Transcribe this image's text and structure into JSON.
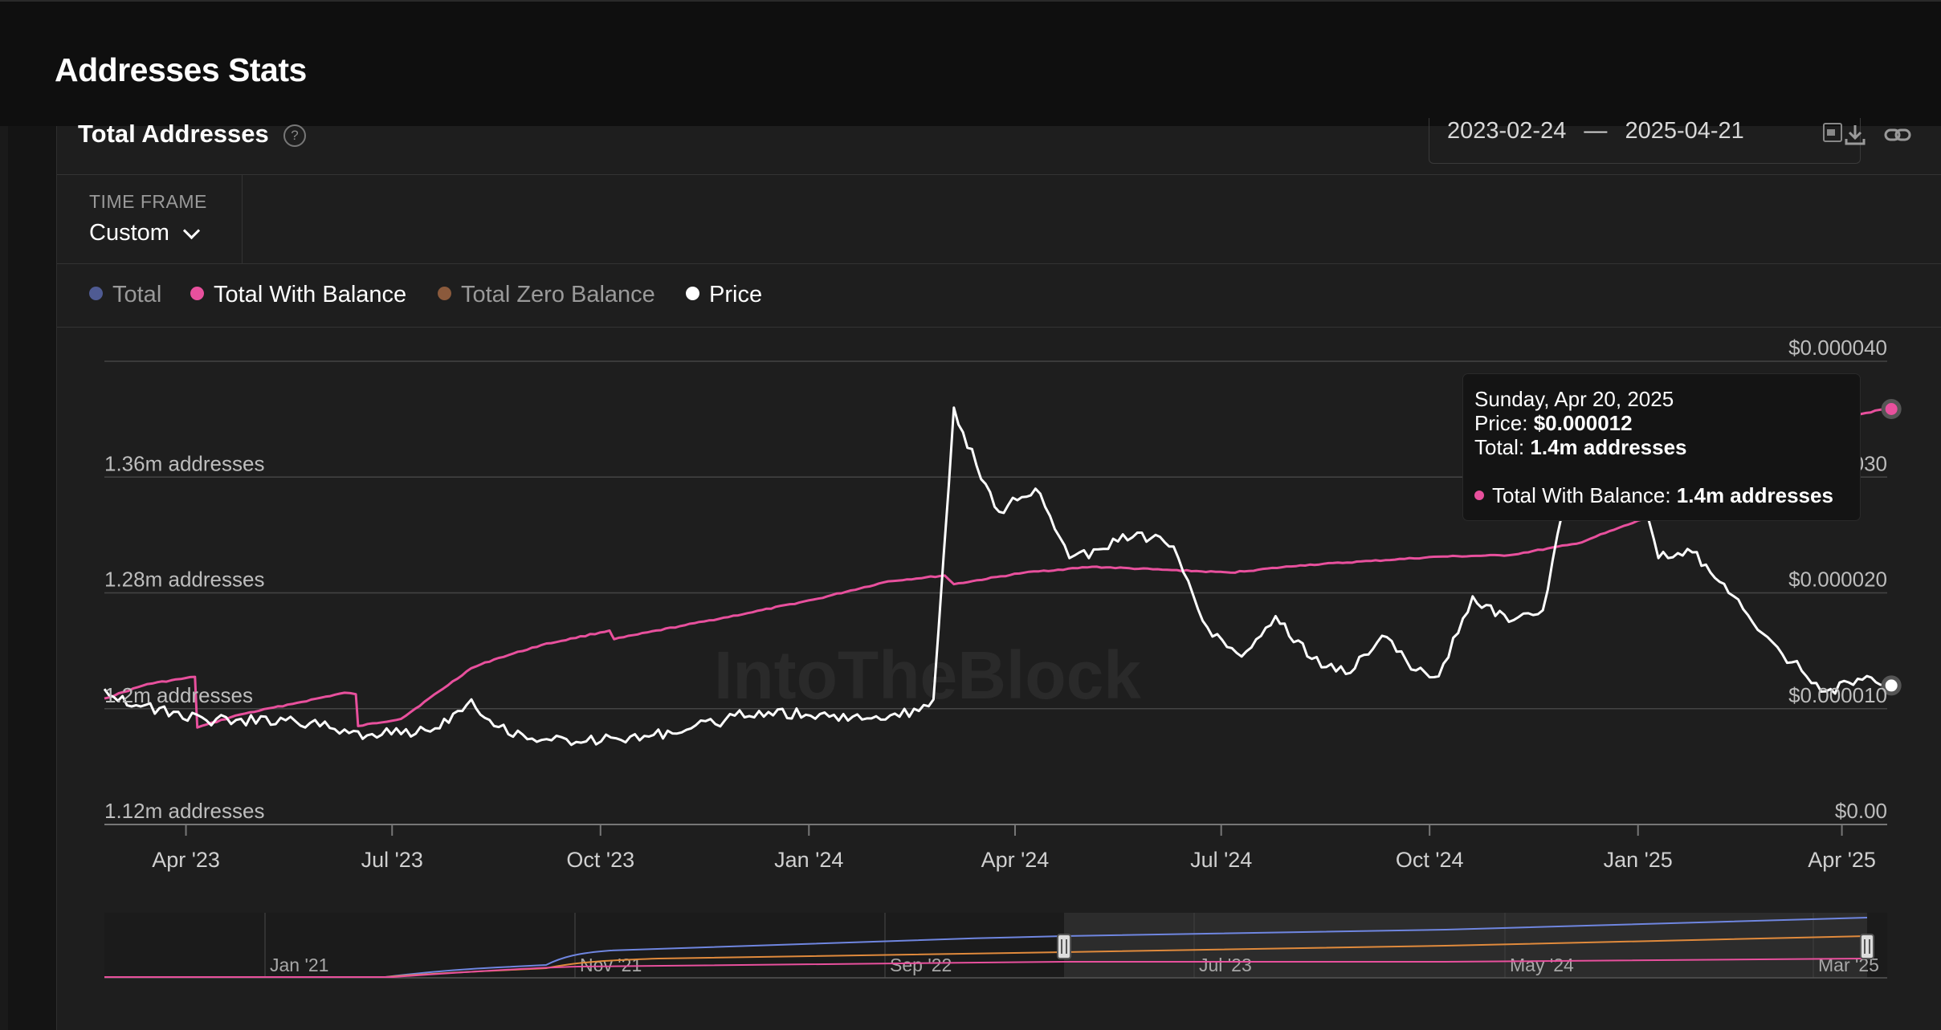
{
  "page": {
    "title": "Addresses Stats"
  },
  "card": {
    "title": "Total Addresses",
    "help_icon": "question-circle-icon",
    "date_start": "2023-02-24",
    "date_sep": "—",
    "date_end": "2025-04-21",
    "calendar_icon": "calendar-icon",
    "download_icon": "download-icon",
    "link_icon": "link-icon"
  },
  "time_frame": {
    "label": "TIME FRAME",
    "value": "Custom",
    "icon": "chevron-down-icon"
  },
  "legend": [
    {
      "label": "Total",
      "color": "#4f5b93",
      "active": false
    },
    {
      "label": "Total With Balance",
      "color": "#e8509d",
      "active": true
    },
    {
      "label": "Total Zero Balance",
      "color": "#8b5a3c",
      "active": false
    },
    {
      "label": "Price",
      "color": "#ffffff",
      "active": true
    }
  ],
  "watermark": "IntoTheBlock",
  "tooltip": {
    "date": "Sunday, Apr 20, 2025",
    "price_label": "Price:",
    "price_value": "$0.000012",
    "total_label": "Total:",
    "total_value": "1.4m addresses",
    "twb_label": "Total With Balance:",
    "twb_value": "1.4m addresses"
  },
  "chart_data": {
    "type": "line",
    "x_ticks": [
      "Apr '23",
      "Jul '23",
      "Oct '23",
      "Jan '24",
      "Apr '24",
      "Jul '24",
      "Oct '24",
      "Jan '25",
      "Apr '25"
    ],
    "y_left_ticks": [
      "1.12m addresses",
      "1.2m addresses",
      "1.28m addresses",
      "1.36m addresses"
    ],
    "y_right_ticks": [
      "$0.00",
      "$0.000010",
      "$0.000020",
      "$0.000030",
      "$0.000040"
    ],
    "y_left_range": [
      1120000,
      1440000
    ],
    "y_right_range": [
      0,
      4e-05
    ],
    "x_range": [
      "2023-02-24",
      "2025-04-21"
    ],
    "series": [
      {
        "name": "Total With Balance",
        "axis": "left",
        "color": "#e8509d",
        "x": [
          "2023-02-24",
          "2023-03-15",
          "2023-04-05",
          "2023-04-06",
          "2023-04-25",
          "2023-05-20",
          "2023-06-10",
          "2023-06-15",
          "2023-06-16",
          "2023-07-05",
          "2023-08-05",
          "2023-08-15",
          "2023-09-05",
          "2023-10-05",
          "2023-10-07",
          "2023-11-05",
          "2023-12-05",
          "2024-01-05",
          "2024-02-05",
          "2024-03-01",
          "2024-03-05",
          "2024-04-05",
          "2024-05-05",
          "2024-06-05",
          "2024-07-05",
          "2024-08-05",
          "2024-09-05",
          "2024-10-05",
          "2024-11-05",
          "2024-12-05",
          "2025-01-05",
          "2025-02-05",
          "2025-03-05",
          "2025-04-20"
        ],
        "values": [
          1207000,
          1217000,
          1222000,
          1187000,
          1196000,
          1204000,
          1211000,
          1210000,
          1188000,
          1193000,
          1228000,
          1234000,
          1244000,
          1254000,
          1248000,
          1257000,
          1266000,
          1276000,
          1288000,
          1292000,
          1286000,
          1294000,
          1298000,
          1296000,
          1294000,
          1299000,
          1302000,
          1305000,
          1306000,
          1314000,
          1332000,
          1362000,
          1392000,
          1407000
        ]
      },
      {
        "name": "Price",
        "axis": "right",
        "color": "#ffffff",
        "x": [
          "2023-02-24",
          "2023-03-10",
          "2023-04-10",
          "2023-05-15",
          "2023-06-10",
          "2023-06-20",
          "2023-07-20",
          "2023-08-05",
          "2023-08-15",
          "2023-09-05",
          "2023-10-10",
          "2023-11-10",
          "2023-12-10",
          "2024-01-10",
          "2024-02-10",
          "2024-02-25",
          "2024-03-05",
          "2024-03-15",
          "2024-03-25",
          "2024-04-10",
          "2024-04-25",
          "2024-05-10",
          "2024-05-25",
          "2024-06-10",
          "2024-06-25",
          "2024-07-10",
          "2024-07-25",
          "2024-08-10",
          "2024-08-25",
          "2024-09-10",
          "2024-09-25",
          "2024-10-05",
          "2024-10-20",
          "2024-11-05",
          "2024-11-20",
          "2024-12-05",
          "2024-12-15",
          "2024-12-25",
          "2025-01-10",
          "2025-01-25",
          "2025-02-10",
          "2025-02-25",
          "2025-03-10",
          "2025-03-25",
          "2025-04-10",
          "2025-04-20"
        ],
        "values": [
          1.17e-05,
          1.03e-05,
          9e-06,
          9e-06,
          8.2e-06,
          7.7e-06,
          8.3e-06,
          1.08e-05,
          8.5e-06,
          7.3e-06,
          7.3e-06,
          8.3e-06,
          9.8e-06,
          9.3e-06,
          9.3e-06,
          1.08e-05,
          3.6e-05,
          3.1e-05,
          2.7e-05,
          2.9e-05,
          2.3e-05,
          2.38e-05,
          2.52e-05,
          2.4e-05,
          1.7e-05,
          1.45e-05,
          1.8e-05,
          1.43e-05,
          1.3e-05,
          1.63e-05,
          1.33e-05,
          1.28e-05,
          1.97e-05,
          1.75e-05,
          1.85e-05,
          3.28e-05,
          3e-05,
          3.5e-05,
          2.3e-05,
          2.35e-05,
          2e-05,
          1.65e-05,
          1.4e-05,
          1.15e-05,
          1.25e-05,
          1.2e-05
        ]
      }
    ],
    "navigator": {
      "x_ticks": [
        "Jan '21",
        "Nov '21",
        "Sep '22",
        "Jul '23",
        "May '24",
        "Mar '25"
      ]
    }
  }
}
